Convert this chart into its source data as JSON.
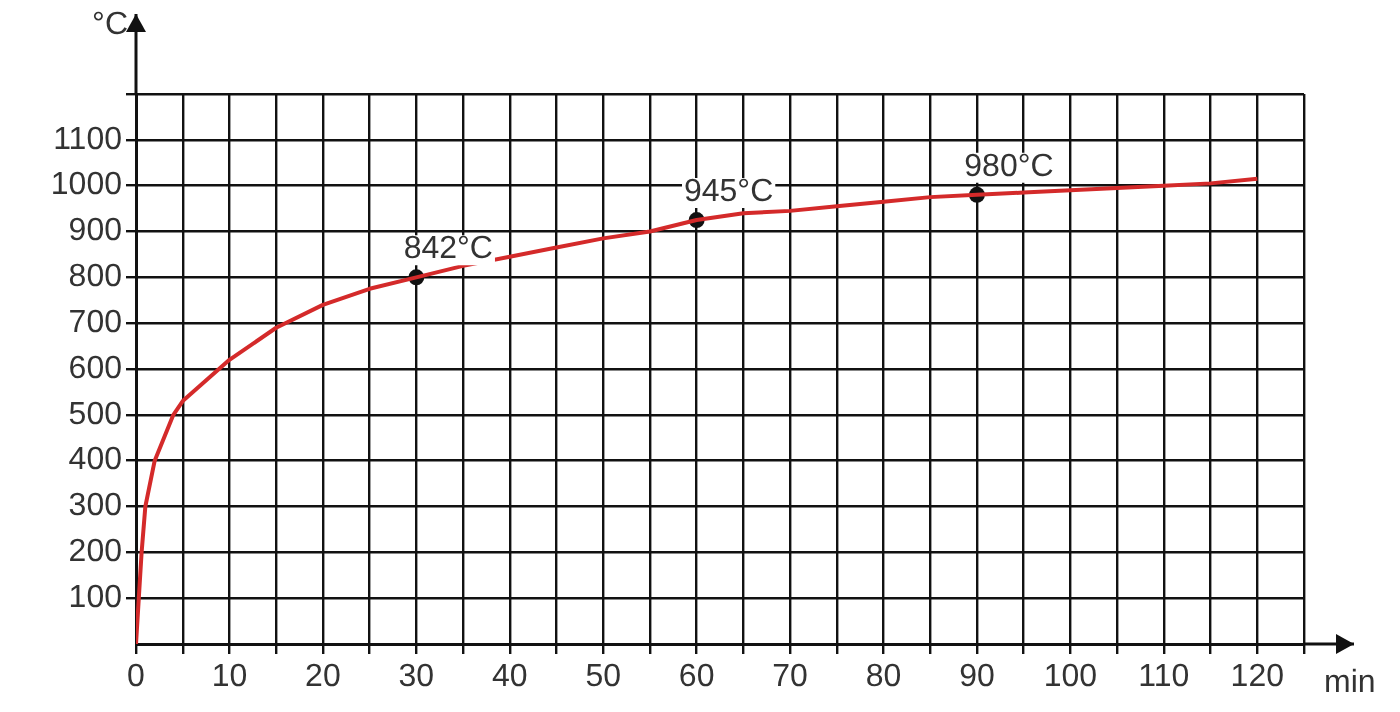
{
  "chart_data": {
    "type": "line",
    "xlabel": "min",
    "ylabel": "°C",
    "xlim": [
      0,
      125
    ],
    "ylim": [
      0,
      1200
    ],
    "xticks": [
      0,
      {
        "value": 5,
        "label": null
      },
      10,
      {
        "value": 15,
        "label": null
      },
      20,
      {
        "value": 25,
        "label": null
      },
      30,
      {
        "value": 35,
        "label": null
      },
      40,
      {
        "value": 45,
        "label": null
      },
      50,
      {
        "value": 55,
        "label": null
      },
      60,
      {
        "value": 65,
        "label": null
      },
      70,
      {
        "value": 75,
        "label": null
      },
      80,
      {
        "value": 85,
        "label": null
      },
      90,
      {
        "value": 95,
        "label": null
      },
      100,
      {
        "value": 105,
        "label": null
      },
      110,
      {
        "value": 115,
        "label": null
      },
      120,
      {
        "value": 125,
        "label": null
      }
    ],
    "yticks": [
      100,
      200,
      300,
      400,
      500,
      600,
      700,
      800,
      900,
      1000,
      1100,
      {
        "value": 1200,
        "label": null
      }
    ],
    "grid": true,
    "legend": false,
    "series": [
      {
        "color": "#d42a2a",
        "marker": "none",
        "x": [
          0,
          0.3,
          0.6,
          1,
          2,
          4,
          5,
          10,
          15,
          20,
          25,
          30,
          35,
          40,
          45,
          50,
          55,
          60,
          65,
          70,
          75,
          80,
          85,
          90,
          95,
          100,
          105,
          110,
          115,
          120
        ],
        "values": [
          0,
          100,
          200,
          300,
          400,
          500,
          530,
          620,
          690,
          740,
          775,
          800,
          825,
          845,
          865,
          885,
          900,
          925,
          940,
          945,
          955,
          965,
          975,
          980,
          985,
          990,
          995,
          1000,
          1005,
          1015
        ]
      },
      {
        "type": "scatter",
        "color": "#111111",
        "marker": "circle",
        "x": [
          30,
          60,
          90
        ],
        "values": [
          800,
          925,
          980
        ]
      }
    ],
    "annotations": [
      {
        "text": "842°C",
        "x": 30,
        "y": 800
      },
      {
        "text": "945°C",
        "x": 60,
        "y": 925
      },
      {
        "text": "980°C",
        "x": 90,
        "y": 980
      }
    ]
  }
}
